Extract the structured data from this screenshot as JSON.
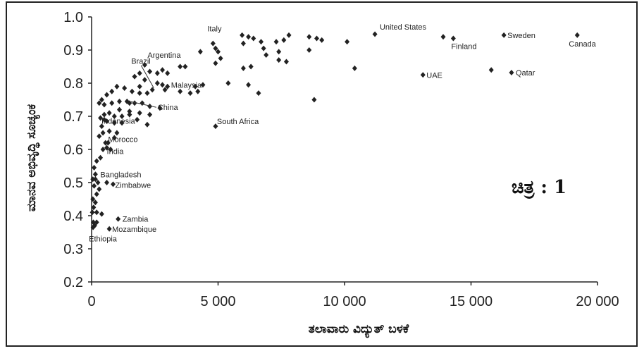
{
  "chart_data": {
    "type": "scatter",
    "xlabel": "ತಲಾವಾರು ವಿದ್ಯುತ್ ಬಳಕೆ",
    "ylabel": "ಮಾನವ ಅಭಿವೃದ್ಧಿ ಸೂಚ್ಯಂಕ",
    "figure_label": "ಚಿತ್ರ : 1",
    "xlim": [
      0,
      20000
    ],
    "ylim": [
      0.2,
      1.0
    ],
    "x_ticks": [
      0,
      5000,
      10000,
      15000,
      20000
    ],
    "x_tick_labels": [
      "0",
      "5 000",
      "10 000",
      "15 000",
      "20 000"
    ],
    "y_ticks": [
      0.2,
      0.3,
      0.4,
      0.5,
      0.6,
      0.7,
      0.8,
      0.9,
      1.0
    ],
    "y_tick_labels": [
      "0.2",
      "0.3",
      "0.4",
      "0.5",
      "0.6",
      "0.7",
      "0.8",
      "0.9",
      "1.0"
    ],
    "grid": false,
    "marker_color": "#222222",
    "labeled_points": [
      {
        "name": "Italy",
        "x": 4800,
        "y": 0.92
      },
      {
        "name": "United States",
        "x": 13900,
        "y": 0.94
      },
      {
        "name": "Finland",
        "x": 14300,
        "y": 0.935
      },
      {
        "name": "Sweden",
        "x": 16300,
        "y": 0.945
      },
      {
        "name": "Canada",
        "x": 19200,
        "y": 0.945
      },
      {
        "name": "UAE",
        "x": 13100,
        "y": 0.825
      },
      {
        "name": "Qatar",
        "x": 16600,
        "y": 0.832
      },
      {
        "name": "Argentina",
        "x": 2100,
        "y": 0.855
      },
      {
        "name": "Brazil",
        "x": 1900,
        "y": 0.79
      },
      {
        "name": "Malaysia",
        "x": 3000,
        "y": 0.79
      },
      {
        "name": "China",
        "x": 1500,
        "y": 0.74
      },
      {
        "name": "South Africa",
        "x": 4900,
        "y": 0.67
      },
      {
        "name": "Indonesia",
        "x": 500,
        "y": 0.69
      },
      {
        "name": "Morocco",
        "x": 650,
        "y": 0.62
      },
      {
        "name": "India",
        "x": 600,
        "y": 0.605
      },
      {
        "name": "Bangladesh",
        "x": 150,
        "y": 0.51
      },
      {
        "name": "Zimbabwe",
        "x": 850,
        "y": 0.495
      },
      {
        "name": "Zambia",
        "x": 1050,
        "y": 0.39
      },
      {
        "name": "Mozambique",
        "x": 700,
        "y": 0.36
      },
      {
        "name": "Ethiopia",
        "x": 60,
        "y": 0.365
      }
    ],
    "points": [
      [
        4300,
        0.895
      ],
      [
        4900,
        0.905
      ],
      [
        5000,
        0.895
      ],
      [
        5100,
        0.875
      ],
      [
        4900,
        0.86
      ],
      [
        5950,
        0.945
      ],
      [
        6200,
        0.94
      ],
      [
        6400,
        0.935
      ],
      [
        6000,
        0.92
      ],
      [
        6700,
        0.925
      ],
      [
        7300,
        0.925
      ],
      [
        7600,
        0.93
      ],
      [
        7800,
        0.945
      ],
      [
        8600,
        0.94
      ],
      [
        8900,
        0.935
      ],
      [
        9100,
        0.93
      ],
      [
        10100,
        0.925
      ],
      [
        11200,
        0.948
      ],
      [
        6800,
        0.905
      ],
      [
        7400,
        0.895
      ],
      [
        8600,
        0.9
      ],
      [
        6900,
        0.885
      ],
      [
        7400,
        0.87
      ],
      [
        7700,
        0.865
      ],
      [
        6000,
        0.845
      ],
      [
        6300,
        0.85
      ],
      [
        10400,
        0.845
      ],
      [
        15800,
        0.84
      ],
      [
        5400,
        0.8
      ],
      [
        6200,
        0.795
      ],
      [
        6600,
        0.77
      ],
      [
        8800,
        0.75
      ],
      [
        4100,
        0.79
      ],
      [
        4400,
        0.795
      ],
      [
        3700,
        0.85
      ],
      [
        3500,
        0.85
      ],
      [
        4200,
        0.775
      ],
      [
        3900,
        0.77
      ],
      [
        3500,
        0.775
      ],
      [
        2800,
        0.84
      ],
      [
        3000,
        0.83
      ],
      [
        2600,
        0.83
      ],
      [
        2300,
        0.835
      ],
      [
        1900,
        0.83
      ],
      [
        1700,
        0.82
      ],
      [
        2100,
        0.81
      ],
      [
        2600,
        0.8
      ],
      [
        2800,
        0.795
      ],
      [
        2900,
        0.78
      ],
      [
        2400,
        0.78
      ],
      [
        2200,
        0.77
      ],
      [
        1900,
        0.77
      ],
      [
        1600,
        0.775
      ],
      [
        1300,
        0.785
      ],
      [
        1000,
        0.79
      ],
      [
        800,
        0.775
      ],
      [
        600,
        0.765
      ],
      [
        400,
        0.75
      ],
      [
        300,
        0.74
      ],
      [
        500,
        0.735
      ],
      [
        800,
        0.74
      ],
      [
        1100,
        0.745
      ],
      [
        1400,
        0.745
      ],
      [
        1700,
        0.74
      ],
      [
        2000,
        0.74
      ],
      [
        2300,
        0.73
      ],
      [
        2700,
        0.725
      ],
      [
        1100,
        0.72
      ],
      [
        1500,
        0.715
      ],
      [
        1900,
        0.71
      ],
      [
        2300,
        0.705
      ],
      [
        1200,
        0.7
      ],
      [
        1500,
        0.705
      ],
      [
        900,
        0.7
      ],
      [
        700,
        0.71
      ],
      [
        500,
        0.705
      ],
      [
        350,
        0.695
      ],
      [
        600,
        0.685
      ],
      [
        900,
        0.68
      ],
      [
        1200,
        0.68
      ],
      [
        1800,
        0.69
      ],
      [
        2200,
        0.675
      ],
      [
        400,
        0.67
      ],
      [
        700,
        0.655
      ],
      [
        1000,
        0.65
      ],
      [
        450,
        0.65
      ],
      [
        300,
        0.64
      ],
      [
        900,
        0.635
      ],
      [
        550,
        0.62
      ],
      [
        450,
        0.6
      ],
      [
        750,
        0.6
      ],
      [
        350,
        0.575
      ],
      [
        200,
        0.565
      ],
      [
        100,
        0.545
      ],
      [
        150,
        0.525
      ],
      [
        50,
        0.51
      ],
      [
        250,
        0.5
      ],
      [
        100,
        0.49
      ],
      [
        300,
        0.48
      ],
      [
        200,
        0.465
      ],
      [
        50,
        0.45
      ],
      [
        150,
        0.44
      ],
      [
        80,
        0.425
      ],
      [
        30,
        0.41
      ],
      [
        200,
        0.41
      ],
      [
        400,
        0.405
      ],
      [
        600,
        0.5
      ],
      [
        70,
        0.38
      ],
      [
        120,
        0.37
      ],
      [
        200,
        0.38
      ]
    ]
  }
}
